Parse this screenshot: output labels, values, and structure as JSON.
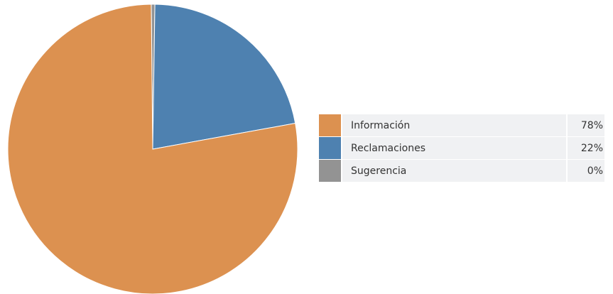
{
  "chart_data": {
    "type": "pie",
    "categories": [
      "Información",
      "Reclamaciones",
      "Sugerencia"
    ],
    "values": [
      77.7,
      21.9,
      0.4
    ],
    "value_labels": [
      "78%",
      "22%",
      "0%"
    ],
    "colors": [
      "#dc9150",
      "#4e81b0",
      "#939393"
    ]
  }
}
